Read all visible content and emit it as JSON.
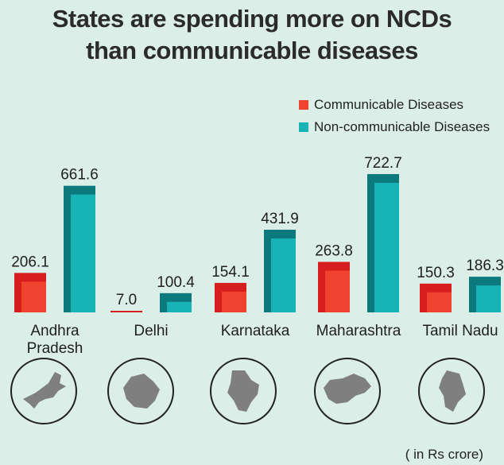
{
  "title_lines": [
    "States are spending more on NCDs",
    "than communicable diseases"
  ],
  "unit_note": "( in Rs crore)",
  "colors": {
    "background": "#dbeee7",
    "communicable_dark": "#d61e1e",
    "communicable_light": "#f0432f",
    "ncd_dark": "#0c7a7d",
    "ncd_light": "#17b3b6",
    "map_fill": "#7f7f7f",
    "map_circle": "#222222"
  },
  "chart_data": {
    "type": "bar",
    "categories": [
      "Andhra Pradesh",
      "Delhi",
      "Karnataka",
      "Maharashtra",
      "Tamil Nadu"
    ],
    "category_label_lines": [
      [
        "Andhra",
        "Pradesh"
      ],
      [
        "Delhi"
      ],
      [
        "Karnataka"
      ],
      [
        "Maharashtra"
      ],
      [
        "Tamil Nadu"
      ]
    ],
    "series": [
      {
        "name": "Communicable Diseases",
        "values": [
          206.1,
          7.0,
          154.1,
          263.8,
          150.3
        ],
        "value_labels": [
          "206.1",
          "7.0",
          "154.1",
          "263.8",
          "150.3"
        ]
      },
      {
        "name": "Non-communicable Diseases",
        "values": [
          661.6,
          100.4,
          431.9,
          722.7,
          186.3
        ],
        "value_labels": [
          "661.6",
          "100.4",
          "431.9",
          "722.7",
          "186.3"
        ]
      }
    ],
    "ylim": [
      0,
      722.7
    ],
    "grid": false,
    "legend_position": "top-right",
    "xlabel": "",
    "ylabel": ""
  },
  "map_icons": [
    "andhra-pradesh-map-icon",
    "delhi-map-icon",
    "karnataka-map-icon",
    "maharashtra-map-icon",
    "tamil-nadu-map-icon"
  ]
}
